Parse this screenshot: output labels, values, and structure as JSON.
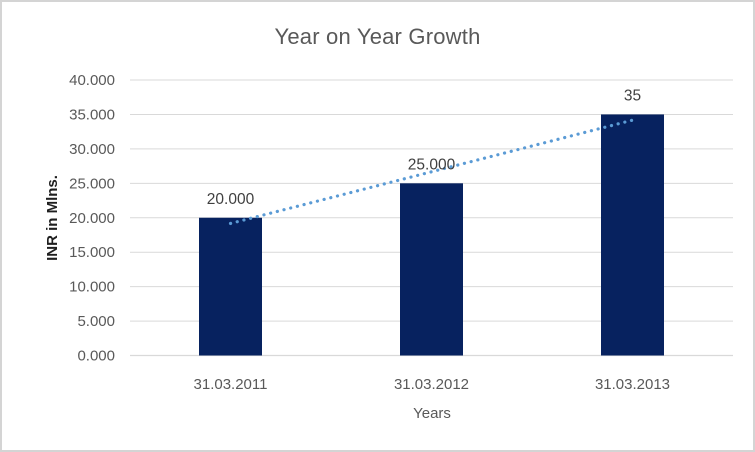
{
  "window": {
    "background": "#FFFFFF",
    "border_color": "#D4D4D4"
  },
  "chart_data": {
    "type": "bar",
    "title": "Year on Year Growth",
    "xlabel": "Years",
    "ylabel": "INR in Mlns.",
    "categories": [
      "31.03.2011",
      "31.03.2012",
      "31.03.2013"
    ],
    "values": [
      20,
      25,
      35
    ],
    "data_labels": [
      "20.000",
      "25.000",
      "35"
    ],
    "ylim": [
      0,
      40
    ],
    "ytick_step": 5,
    "ytick_labels": [
      "0.000",
      "5.000",
      "10.000",
      "15.000",
      "20.000",
      "25.000",
      "30.000",
      "35.000",
      "40.000"
    ],
    "grid": true,
    "legend": "none",
    "bar_color": "#07225F",
    "gridline_color": "#D9D9D9",
    "axis_line_color": "#D9D9D9",
    "axis_text_color": "#595959",
    "data_label_color": "#404040",
    "title_color": "#595959",
    "ylabel_color": "#1F1F1F",
    "trendline": {
      "type": "linear",
      "style": "dotted",
      "color": "#5B9BD5",
      "endpoints_value": [
        19.17,
        34.17
      ]
    }
  }
}
